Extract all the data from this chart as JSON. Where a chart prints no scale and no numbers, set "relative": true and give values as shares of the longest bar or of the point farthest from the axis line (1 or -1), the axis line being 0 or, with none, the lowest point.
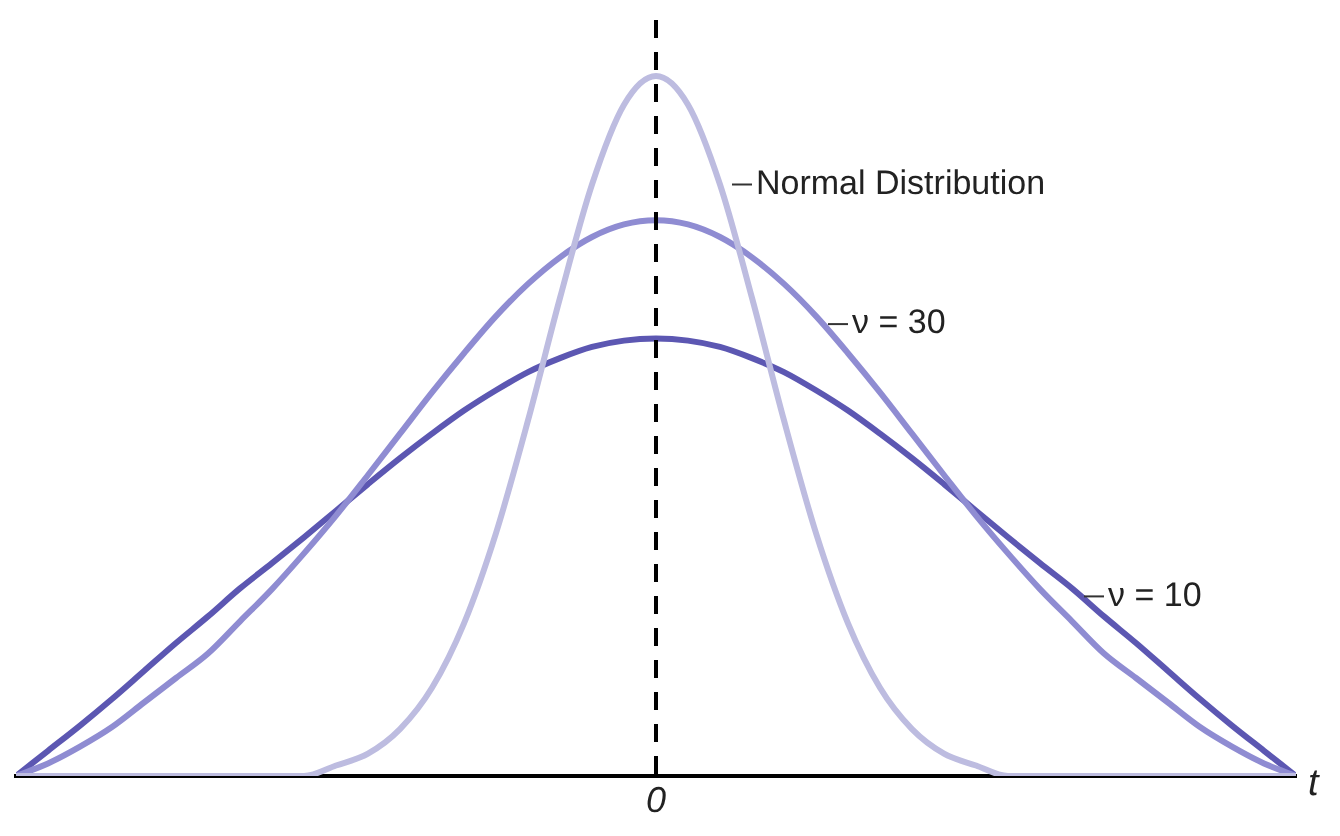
{
  "chart_data": {
    "type": "line",
    "relative": true,
    "xlabel": "t",
    "categories": [
      null,
      null,
      null,
      null,
      null,
      null,
      null,
      null,
      null,
      null,
      null,
      null,
      null,
      null,
      null,
      null,
      null,
      null,
      null,
      null,
      null,
      null,
      null,
      null,
      null,
      null,
      null,
      null,
      null,
      null,
      null,
      null,
      null,
      null,
      null,
      null,
      null,
      null,
      null,
      null,
      null
    ],
    "series": [
      {
        "name": "Normal Distribution",
        "color": "#bdbce0",
        "values": [
          0,
          0,
          0,
          0,
          0,
          0,
          0,
          0,
          0,
          0,
          0.015,
          0.032,
          0.067,
          0.126,
          0.218,
          0.347,
          0.508,
          0.683,
          0.845,
          0.959,
          1,
          0.959,
          0.845,
          0.683,
          0.508,
          0.347,
          0.218,
          0.126,
          0.067,
          0.032,
          0.015,
          0,
          0,
          0,
          0,
          0,
          0,
          0,
          0,
          0,
          0
        ]
      },
      {
        "name": "ν = 30",
        "color": "#8f8cd2",
        "values": [
          0,
          0.018,
          0.042,
          0.07,
          0.105,
          0.14,
          0.175,
          0.221,
          0.267,
          0.318,
          0.372,
          0.43,
          0.489,
          0.548,
          0.604,
          0.657,
          0.703,
          0.741,
          0.77,
          0.788,
          0.794,
          0.788,
          0.77,
          0.741,
          0.703,
          0.657,
          0.604,
          0.548,
          0.489,
          0.43,
          0.372,
          0.318,
          0.267,
          0.221,
          0.175,
          0.14,
          0.105,
          0.07,
          0.042,
          0.018,
          0
        ]
      },
      {
        "name": "ν = 10",
        "color": "#5c57b2",
        "values": [
          0,
          0.036,
          0.072,
          0.11,
          0.15,
          0.19,
          0.228,
          0.268,
          0.304,
          0.341,
          0.379,
          0.417,
          0.454,
          0.489,
          0.522,
          0.551,
          0.577,
          0.597,
          0.613,
          0.622,
          0.625,
          0.622,
          0.613,
          0.597,
          0.577,
          0.551,
          0.522,
          0.489,
          0.454,
          0.417,
          0.379,
          0.341,
          0.304,
          0.268,
          0.228,
          0.19,
          0.15,
          0.11,
          0.072,
          0.036,
          0
        ]
      }
    ],
    "ref_lines": [
      {
        "axis": "x",
        "label": "0",
        "line_style": "dashed",
        "color": "#000000"
      }
    ],
    "legend": false,
    "marker": "none",
    "line_style": "solid"
  }
}
